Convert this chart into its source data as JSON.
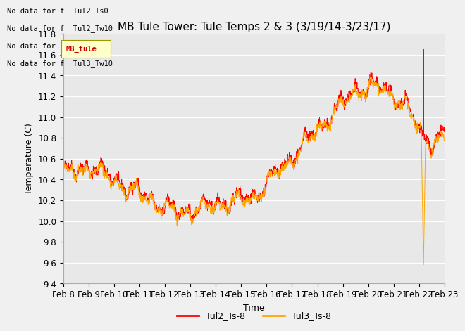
{
  "title": "MB Tule Tower: Tule Temps 2 & 3 (3/19/14-3/23/17)",
  "xlabel": "Time",
  "ylabel": "Temperature (C)",
  "ylim": [
    9.4,
    11.8
  ],
  "yticks": [
    9.4,
    9.6,
    9.8,
    10.0,
    10.2,
    10.4,
    10.6,
    10.8,
    11.0,
    11.2,
    11.4,
    11.6,
    11.8
  ],
  "xtick_labels": [
    "Feb 8",
    "Feb 9",
    "Feb 10",
    "Feb 11",
    "Feb 12",
    "Feb 13",
    "Feb 14",
    "Feb 15",
    "Feb 16",
    "Feb 17",
    "Feb 18",
    "Feb 19",
    "Feb 20",
    "Feb 21",
    "Feb 22",
    "Feb 23"
  ],
  "line1_color": "#ff0000",
  "line2_color": "#ffa500",
  "legend_labels": [
    "Tul2_Ts-8",
    "Tul3_Ts-8"
  ],
  "legend_colors": [
    "#ff0000",
    "#ffa500"
  ],
  "no_data_texts": [
    "No data for f  Tul2_Ts0",
    "No data for f  Tul2_Tw10",
    "No data for f  Tul3_Ts0",
    "No data for f  Tul3_Tw10"
  ],
  "background_color": "#f0f0f0",
  "plot_bg_color": "#e8e8e8",
  "grid_color": "#ffffff",
  "title_fontsize": 11,
  "axis_fontsize": 9,
  "tick_fontsize": 8.5
}
